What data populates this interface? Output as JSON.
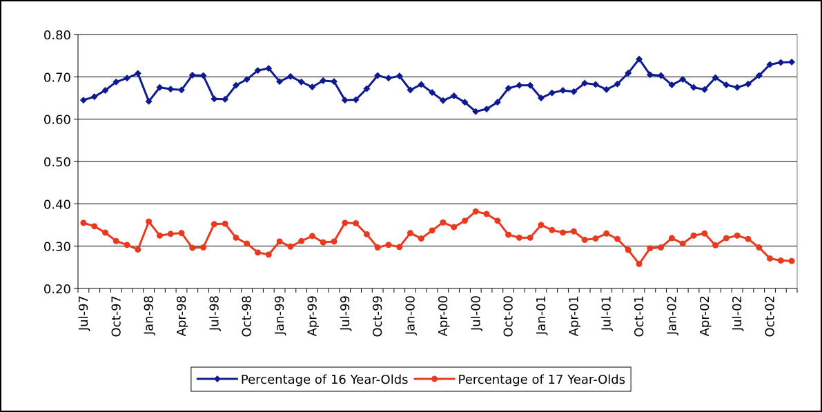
{
  "chart_data": {
    "type": "line",
    "categories": [
      "Jul-97",
      null,
      null,
      "Oct-97",
      null,
      null,
      "Jan-98",
      null,
      null,
      "Apr-98",
      null,
      null,
      "Jul-98",
      null,
      null,
      "Oct-98",
      null,
      null,
      "Jan-99",
      null,
      null,
      "Apr-99",
      null,
      null,
      "Jul-99",
      null,
      null,
      "Oct-99",
      null,
      null,
      "Jan-00",
      null,
      null,
      "Apr-00",
      null,
      null,
      "Jul-00",
      null,
      null,
      "Oct-00",
      null,
      null,
      "Jan-01",
      null,
      null,
      "Apr-01",
      null,
      null,
      "Jul-01",
      null,
      null,
      "Oct-01",
      null,
      null,
      "Jan-02",
      null,
      null,
      "Apr-02",
      null,
      null,
      "Jul-02",
      null,
      null,
      "Oct-02",
      null,
      null
    ],
    "series": [
      {
        "name": "Percentage of 16 Year-Olds",
        "color": "#0f1a8f",
        "marker": "diamond",
        "values": [
          0.645,
          0.653,
          0.668,
          0.688,
          0.697,
          0.708,
          0.642,
          0.675,
          0.671,
          0.669,
          0.704,
          0.703,
          0.648,
          0.647,
          0.68,
          0.694,
          0.715,
          0.72,
          0.689,
          0.701,
          0.688,
          0.676,
          0.691,
          0.689,
          0.645,
          0.646,
          0.672,
          0.703,
          0.697,
          0.702,
          0.669,
          0.682,
          0.663,
          0.644,
          0.655,
          0.64,
          0.618,
          0.624,
          0.64,
          0.673,
          0.68,
          0.68,
          0.65,
          0.662,
          0.668,
          0.665,
          0.685,
          0.682,
          0.67,
          0.683,
          0.709,
          0.742,
          0.705,
          0.703,
          0.681,
          0.694,
          0.675,
          0.67,
          0.698,
          0.681,
          0.675,
          0.683,
          0.703,
          0.729,
          0.734,
          0.735
        ]
      },
      {
        "name": "Percentage of 17 Year-Olds",
        "color": "#e83a1e",
        "marker": "circle",
        "values": [
          0.355,
          0.347,
          0.332,
          0.312,
          0.303,
          0.292,
          0.358,
          0.325,
          0.329,
          0.331,
          0.296,
          0.297,
          0.352,
          0.353,
          0.32,
          0.306,
          0.285,
          0.28,
          0.311,
          0.299,
          0.312,
          0.324,
          0.309,
          0.311,
          0.355,
          0.354,
          0.328,
          0.297,
          0.303,
          0.298,
          0.331,
          0.318,
          0.337,
          0.356,
          0.345,
          0.36,
          0.382,
          0.376,
          0.36,
          0.327,
          0.32,
          0.32,
          0.35,
          0.338,
          0.332,
          0.335,
          0.315,
          0.318,
          0.33,
          0.317,
          0.291,
          0.258,
          0.295,
          0.297,
          0.319,
          0.306,
          0.325,
          0.33,
          0.302,
          0.319,
          0.325,
          0.317,
          0.297,
          0.271,
          0.266,
          0.265
        ]
      }
    ],
    "ylim": [
      0.2,
      0.8
    ],
    "yticks": [
      {
        "value": 0.2,
        "label": "0.20"
      },
      {
        "value": 0.3,
        "label": "0.30"
      },
      {
        "value": 0.4,
        "label": "0.40"
      },
      {
        "value": 0.5,
        "label": "0.50"
      },
      {
        "value": 0.6,
        "label": "0.60"
      },
      {
        "value": 0.7,
        "label": "0.70"
      },
      {
        "value": 0.8,
        "label": "0.80"
      }
    ],
    "grid": true,
    "legend": "bottom"
  }
}
